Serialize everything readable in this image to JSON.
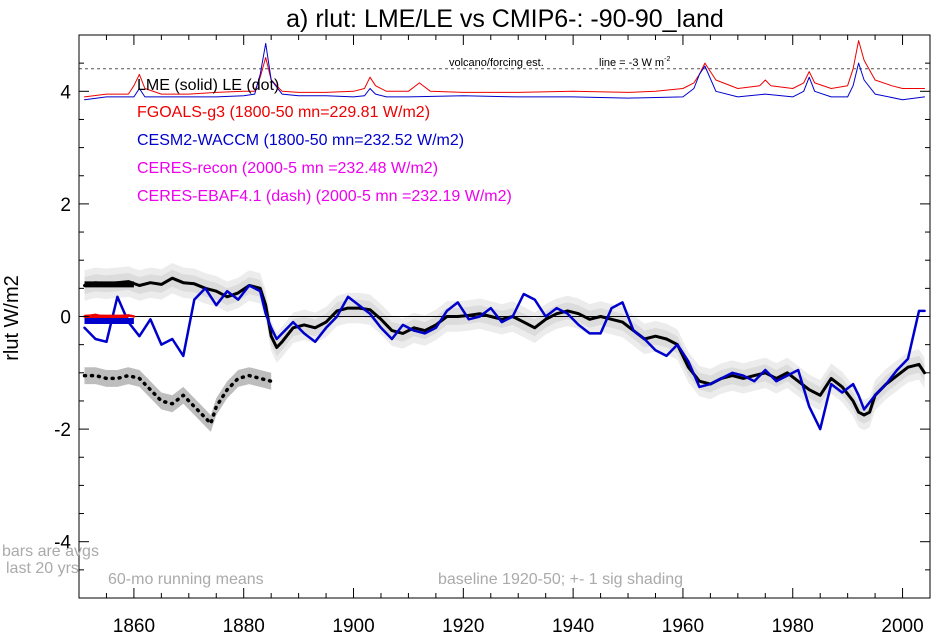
{
  "chart_data": {
    "type": "line",
    "title": "a) rlut: LME/LE vs CMIP6-: -90-90_land",
    "ylabel": "rlut W/m2",
    "xlabel": "",
    "xlim": [
      1850,
      2005
    ],
    "ylim": [
      -5,
      5
    ],
    "x_ticks": [
      1860,
      1880,
      1900,
      1920,
      1940,
      1960,
      1980,
      2000
    ],
    "y_ticks": [
      4,
      2,
      0,
      -2,
      -4
    ],
    "grid": false,
    "legend_lines": [
      {
        "text": "LME (solid)   LE (dot)",
        "color": "#000000"
      },
      {
        "text": "FGOALS-g3 (1800-50 mn=229.81 W/m2)",
        "color": "#ee0000"
      },
      {
        "text": "CESM2-WACCM (1800-50 mn=232.52 W/m2)",
        "color": "#0000cc"
      },
      {
        "text": "CERES-recon (2000-5 mn =232.48 W/m2)",
        "color": "#ee00ee"
      },
      {
        "text": "CERES-EBAF4.1 (dash) (2000-5 mn =232.19 W/m2)",
        "color": "#ee00ee"
      }
    ],
    "annotations": {
      "volcano_label": "volcano/forcing est.",
      "volcano_line_label": "line = -3 W m",
      "volcano_line_sup": "-2",
      "bars_note_1": "bars are avgs",
      "bars_note_2": "last 20 yrs",
      "running_means": "60-mo running means",
      "baseline_note": "baseline 1920-50; +- 1 sig shading"
    },
    "volcano_reference_y": 4.4,
    "series": [
      {
        "name": "LME (solid)",
        "color": "#000000",
        "style": "solid",
        "x": [
          1851,
          1853,
          1855,
          1857,
          1859,
          1861,
          1863,
          1865,
          1867,
          1869,
          1871,
          1873,
          1875,
          1877,
          1879,
          1881,
          1883,
          1884,
          1885,
          1886,
          1887,
          1889,
          1891,
          1893,
          1895,
          1897,
          1899,
          1901,
          1903,
          1905,
          1907,
          1909,
          1911,
          1913,
          1915,
          1917,
          1919,
          1921,
          1923,
          1925,
          1927,
          1929,
          1931,
          1933,
          1935,
          1937,
          1939,
          1941,
          1943,
          1945,
          1947,
          1949,
          1951,
          1953,
          1955,
          1957,
          1959,
          1961,
          1963,
          1965,
          1967,
          1969,
          1971,
          1973,
          1975,
          1977,
          1979,
          1981,
          1983,
          1985,
          1987,
          1989,
          1991,
          1992,
          1993,
          1994,
          1995,
          1997,
          1999,
          2001,
          2003,
          2004
        ],
        "y": [
          0.55,
          0.6,
          0.58,
          0.6,
          0.62,
          0.55,
          0.6,
          0.57,
          0.68,
          0.6,
          0.58,
          0.5,
          0.45,
          0.35,
          0.42,
          0.55,
          0.5,
          0.2,
          -0.35,
          -0.55,
          -0.45,
          -0.2,
          -0.15,
          -0.2,
          -0.1,
          0.1,
          0.15,
          0.15,
          0.12,
          -0.05,
          -0.25,
          -0.3,
          -0.2,
          -0.25,
          -0.15,
          0.0,
          0.0,
          0.02,
          0.05,
          0.0,
          -0.05,
          0.0,
          -0.1,
          -0.2,
          -0.05,
          0.05,
          0.1,
          0.05,
          -0.05,
          0.0,
          -0.05,
          -0.1,
          -0.25,
          -0.4,
          -0.35,
          -0.4,
          -0.5,
          -0.9,
          -1.15,
          -1.2,
          -1.1,
          -1.05,
          -1.1,
          -1.05,
          -1.0,
          -1.1,
          -1.0,
          -1.15,
          -1.3,
          -1.4,
          -1.1,
          -1.25,
          -1.5,
          -1.7,
          -1.75,
          -1.7,
          -1.4,
          -1.2,
          -1.05,
          -0.9,
          -0.85,
          -1.0
        ]
      },
      {
        "name": "LE (dot)",
        "color": "#000000",
        "style": "dot",
        "x": [
          1851,
          1853,
          1855,
          1857,
          1859,
          1861,
          1863,
          1865,
          1867,
          1869,
          1871,
          1873,
          1874,
          1875,
          1877,
          1879,
          1881,
          1883,
          1885
        ],
        "y": [
          -1.05,
          -1.05,
          -1.1,
          -1.1,
          -1.05,
          -1.1,
          -1.3,
          -1.5,
          -1.55,
          -1.4,
          -1.6,
          -1.8,
          -1.9,
          -1.6,
          -1.3,
          -1.1,
          -1.05,
          -1.1,
          -1.15
        ]
      },
      {
        "name": "FGOALS-g3",
        "color": "#ee0000",
        "style": "solid",
        "x": [
          1851,
          1855,
          1859,
          1860,
          1861,
          1862,
          1865,
          1870,
          1875,
          1880,
          1882,
          1883,
          1884,
          1885,
          1887,
          1890,
          1895,
          1900,
          1902,
          1903,
          1904,
          1906,
          1910,
          1912,
          1914,
          1920,
          1930,
          1940,
          1950,
          1955,
          1960,
          1962,
          1963,
          1964,
          1966,
          1970,
          1974,
          1975,
          1976,
          1980,
          1982,
          1983,
          1984,
          1987,
          1990,
          1991,
          1992,
          1993,
          1995,
          1998,
          2000,
          2004
        ],
        "y": [
          3.9,
          3.95,
          3.95,
          4.1,
          4.3,
          4.05,
          3.95,
          3.95,
          3.98,
          4.0,
          4.0,
          4.25,
          4.6,
          4.2,
          4.0,
          3.98,
          3.98,
          4.0,
          4.05,
          4.25,
          4.1,
          4.0,
          4.0,
          4.15,
          4.0,
          3.98,
          3.98,
          4.0,
          3.98,
          4.0,
          4.05,
          4.15,
          4.3,
          4.5,
          4.2,
          4.05,
          4.1,
          4.2,
          4.1,
          4.05,
          4.15,
          4.35,
          4.15,
          4.05,
          4.1,
          4.4,
          4.9,
          4.55,
          4.2,
          4.1,
          4.05,
          4.05
        ]
      },
      {
        "name": "CESM2-WACCM",
        "color": "#0000cc",
        "style": "solid",
        "x": [
          1851,
          1855,
          1860,
          1861,
          1862,
          1865,
          1870,
          1875,
          1880,
          1882,
          1883,
          1884,
          1885,
          1887,
          1890,
          1895,
          1900,
          1902,
          1903,
          1904,
          1906,
          1910,
          1920,
          1930,
          1940,
          1950,
          1960,
          1962,
          1963,
          1964,
          1966,
          1970,
          1975,
          1980,
          1982,
          1983,
          1984,
          1987,
          1990,
          1991,
          1992,
          1993,
          1995,
          2000,
          2004
        ],
        "y": [
          3.85,
          3.9,
          3.9,
          4.05,
          3.9,
          3.9,
          3.9,
          3.9,
          3.92,
          3.95,
          4.3,
          4.85,
          4.2,
          3.95,
          3.92,
          3.92,
          3.9,
          3.92,
          4.05,
          3.95,
          3.9,
          3.9,
          3.92,
          3.9,
          3.9,
          3.88,
          3.9,
          4.05,
          4.3,
          4.45,
          4.0,
          3.9,
          3.95,
          3.9,
          4.0,
          4.25,
          4.0,
          3.9,
          3.9,
          4.1,
          4.5,
          4.2,
          3.95,
          3.85,
          3.9
        ]
      },
      {
        "name": "CESM2-WACCM anomaly",
        "color": "#0000cc",
        "style": "solid",
        "x": [
          1851,
          1853,
          1855,
          1857,
          1859,
          1861,
          1863,
          1865,
          1867,
          1869,
          1871,
          1873,
          1875,
          1877,
          1879,
          1881,
          1883,
          1884,
          1885,
          1886,
          1887,
          1889,
          1891,
          1893,
          1895,
          1897,
          1899,
          1901,
          1903,
          1905,
          1907,
          1909,
          1911,
          1913,
          1915,
          1917,
          1919,
          1921,
          1923,
          1925,
          1927,
          1929,
          1931,
          1933,
          1935,
          1937,
          1939,
          1941,
          1943,
          1945,
          1947,
          1949,
          1951,
          1953,
          1955,
          1957,
          1959,
          1961,
          1963,
          1965,
          1967,
          1969,
          1971,
          1973,
          1975,
          1977,
          1979,
          1981,
          1983,
          1985,
          1987,
          1989,
          1991,
          1992,
          1993,
          1995,
          1997,
          1999,
          2001,
          2003,
          2004
        ],
        "y": [
          -0.2,
          -0.4,
          -0.45,
          0.35,
          -0.1,
          -0.35,
          -0.05,
          -0.5,
          -0.4,
          -0.7,
          0.3,
          0.5,
          0.2,
          0.45,
          0.3,
          0.55,
          0.45,
          0.05,
          -0.2,
          -0.4,
          -0.3,
          -0.1,
          -0.3,
          -0.45,
          -0.2,
          0.0,
          0.35,
          0.2,
          0.05,
          -0.2,
          -0.4,
          -0.15,
          -0.25,
          -0.3,
          -0.2,
          0.1,
          0.25,
          -0.05,
          0.0,
          0.15,
          -0.1,
          0.0,
          0.4,
          0.3,
          0.0,
          0.15,
          0.05,
          -0.15,
          -0.3,
          -0.3,
          0.15,
          0.25,
          -0.25,
          -0.4,
          -0.6,
          -0.7,
          -0.5,
          -0.8,
          -1.25,
          -1.2,
          -1.1,
          -1.0,
          -1.05,
          -1.15,
          -0.95,
          -1.15,
          -1.05,
          -0.95,
          -1.6,
          -2.0,
          -1.2,
          -1.35,
          -1.2,
          -1.4,
          -1.65,
          -1.4,
          -1.2,
          -0.95,
          -0.75,
          0.1,
          0.1
        ]
      },
      {
        "name": "FGOALS-g3 anomaly",
        "color": "#ee0000",
        "style": "solid",
        "x": [
          1851,
          1853,
          1855,
          1857,
          1859,
          1860
        ],
        "y": [
          0.0,
          0.03,
          -0.02,
          0.0,
          0.02,
          0.0
        ]
      }
    ],
    "bars": [
      {
        "name": "LME bar",
        "color": "#000000",
        "x": [
          1851,
          1860
        ],
        "y": 0.57
      },
      {
        "name": "FGOALS-g3 bar",
        "color": "#ee0000",
        "x": [
          1851,
          1859
        ],
        "y": -0.02
      },
      {
        "name": "CESM2-WACCM bar",
        "color": "#0000cc",
        "x": [
          1851,
          1860
        ],
        "y": -0.08
      }
    ],
    "shading_lme_sigma": 0.15,
    "shading_le_sigma": 0.15
  }
}
